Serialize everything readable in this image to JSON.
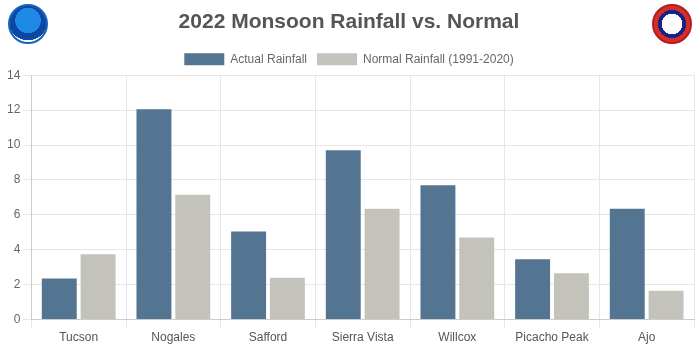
{
  "chart_data": {
    "type": "bar",
    "title": "2022 Monsoon Rainfall vs. Normal",
    "categories": [
      "Tucson",
      "Nogales",
      "Safford",
      "Sierra Vista",
      "Willcox",
      "Picacho Peak",
      "Ajo"
    ],
    "series": [
      {
        "name": "Actual Rainfall",
        "color": "#537591",
        "values": [
          2.35,
          12.05,
          5.05,
          9.7,
          7.7,
          3.45,
          6.35
        ]
      },
      {
        "name": "Normal Rainfall (1991-2020)",
        "color": "#c4c3bb",
        "values": [
          3.75,
          7.15,
          2.4,
          6.35,
          4.7,
          2.65,
          1.65
        ]
      }
    ],
    "ylim": [
      0,
      14
    ],
    "yticks": [
      0,
      2,
      4,
      6,
      8,
      10,
      12,
      14
    ],
    "grid": true,
    "legend": "top"
  }
}
